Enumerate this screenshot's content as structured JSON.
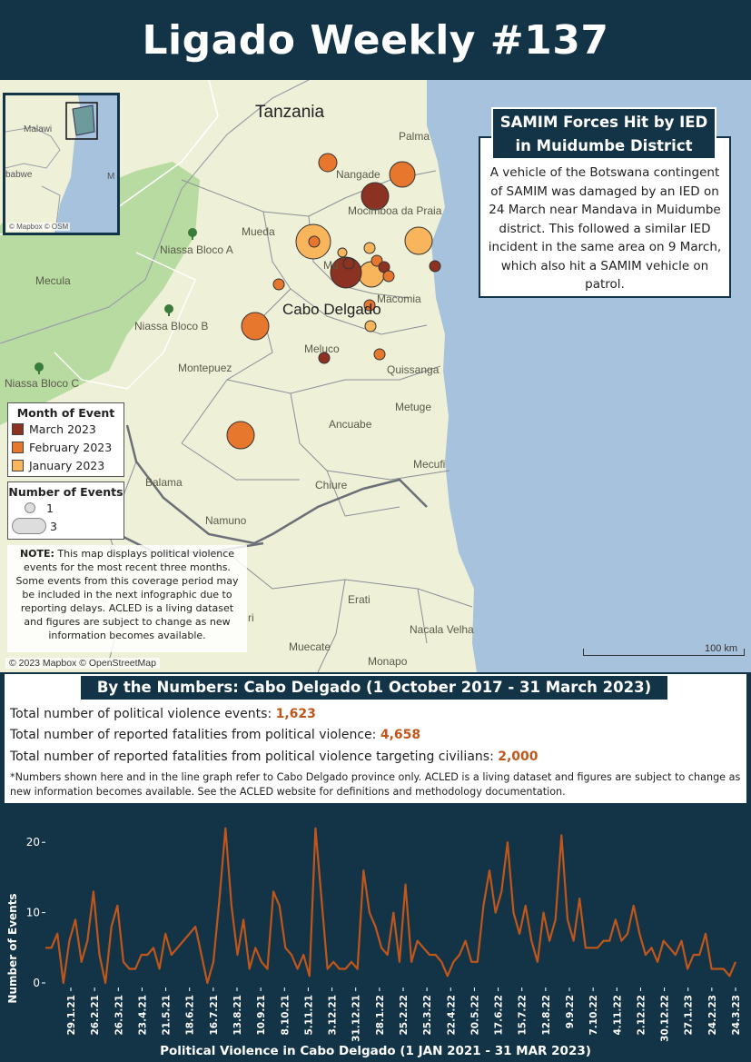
{
  "header": {
    "title": "Ligado Weekly #137"
  },
  "map": {
    "labels": {
      "tanzania": "Tanzania",
      "cabo_delgado": "Cabo Delgado",
      "palma": "Palma",
      "nangade": "Nangade",
      "mocimboa": "Mocimboa da Praia",
      "mueda": "Mueda",
      "muidumbe": "Mu",
      "macomia": "Macomia",
      "meluco": "Meluco",
      "quissanga": "Quissanga",
      "montepuez": "Montepuez",
      "metuge": "Metuge",
      "ancuabe": "Ancuabe",
      "mecufi": "Mecufi",
      "chiure": "Chiure",
      "balama": "Balama",
      "namuno": "Namuno",
      "mecula": "Mecula",
      "niassa_a": "Niassa Bloco A",
      "niassa_b": "Niassa Bloco B",
      "niassa_c": "Niassa Bloco C",
      "erati": "Erati",
      "nacala_velha": "Nacala Velha",
      "muecate": "Muecate",
      "monapo": "Monapo",
      "ri": "ri"
    },
    "inset": {
      "malawi": "Malawi",
      "babwe": "babwe",
      "m": "M",
      "attribution": "© Mapbox © OSM"
    },
    "attribution": "© 2023 Mapbox © OpenStreetMap",
    "scale": "100 km",
    "colors": {
      "march": "#8b3222",
      "february": "#e8772e",
      "january": "#f8b55c",
      "land": "#eef0d8",
      "sea": "#a7c2dd",
      "park": "#b7dba0"
    }
  },
  "callout": {
    "title": "SAMIM Forces Hit by IED in Muidumbe District",
    "body": "A vehicle of the Botswana contingent of SAMIM was damaged by an IED on 24 March near Mandava in Muidumbe district. This followed a similar IED incident in the same area on 9 March, which also hit a SAMIM vehicle on patrol."
  },
  "legend_month": {
    "title": "Month of Event",
    "items": [
      {
        "label": "March 2023",
        "color": "#8b3222"
      },
      {
        "label": "February 2023",
        "color": "#e8772e"
      },
      {
        "label": "January 2023",
        "color": "#f8b55c"
      }
    ]
  },
  "legend_count": {
    "title": "Number of Events",
    "small": "1",
    "large": "3"
  },
  "note": {
    "bold": "NOTE:",
    "text": " This map displays political violence events for the most recent three months. Some events from this coverage period may be included in the next infographic due to reporting delays. ACLED is a living dataset and figures are subject to change as new information becomes available."
  },
  "numbers": {
    "title": "By the Numbers: Cabo Delgado (1 October 2017 - 31 March 2023)",
    "stats": [
      {
        "label": "Total number of political violence events: ",
        "value": "1,623"
      },
      {
        "label": "Total number of reported fatalities from political violence: ",
        "value": "4,658"
      },
      {
        "label": "Total number of reported fatalities from political violence targeting civilians: ",
        "value": "2,000"
      }
    ],
    "footnote": "*Numbers shown here and in the line graph refer to Cabo Delgado province only. ACLED is a living dataset and figures are subject to change as new information becomes available. See the ACLED website for definitions and methodology documentation."
  },
  "chart_data": {
    "type": "line",
    "title": "Political Violence in Cabo Delgado (1 JAN 2021 - 31 MAR 2023)",
    "ylabel": "Number of Events",
    "xlabel": "",
    "ylim": [
      0,
      23
    ],
    "yticks": [
      0,
      10,
      20
    ],
    "line_color": "#c1561b",
    "tick_labels": [
      "29.1.21",
      "26.2.21",
      "26.3.21",
      "23.4.21",
      "21.5.21",
      "18.6.21",
      "16.7.21",
      "13.8.21",
      "10.9.21",
      "8.10.21",
      "5.11.21",
      "3.12.21",
      "31.12.21",
      "28.1.22",
      "25.2.22",
      "25.3.22",
      "22.4.22",
      "20.5.22",
      "17.6.22",
      "15.7.22",
      "12.8.22",
      "9.9.22",
      "7.10.22",
      "4.11.22",
      "2.12.22",
      "30.12.22",
      "27.1.23",
      "24.2.23",
      "24.3.23"
    ],
    "values": [
      5,
      5,
      7,
      0,
      6,
      9,
      3,
      6,
      13,
      4,
      0,
      8,
      11,
      3,
      2,
      2,
      4,
      4,
      5,
      2,
      7,
      4,
      5,
      6,
      7,
      8,
      4,
      0,
      3,
      12,
      22,
      11,
      4,
      9,
      2,
      5,
      3,
      2,
      13,
      11,
      5,
      4,
      2,
      4,
      1,
      22,
      12,
      2,
      3,
      2,
      2,
      3,
      2,
      16,
      10,
      8,
      5,
      4,
      10,
      3,
      14,
      3,
      6,
      5,
      4,
      4,
      3,
      1,
      3,
      4,
      6,
      3,
      3,
      11,
      16,
      10,
      13,
      20,
      10,
      7,
      11,
      6,
      3,
      10,
      6,
      9,
      21,
      9,
      6,
      12,
      5,
      5,
      5,
      6,
      6,
      9,
      6,
      7,
      11,
      7,
      4,
      5,
      3,
      6,
      5,
      4,
      6,
      2,
      4,
      4,
      7,
      2,
      2,
      2,
      1,
      3
    ]
  }
}
